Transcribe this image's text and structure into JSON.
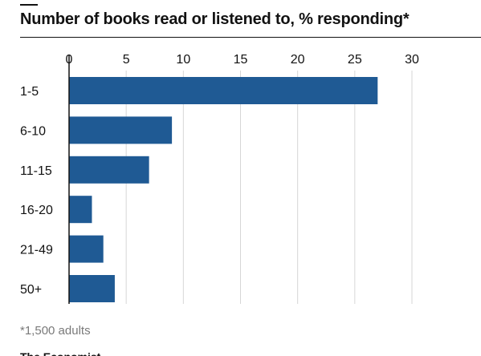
{
  "title": "Number of books read or listened to, % responding*",
  "footnote": "*1,500 adults",
  "colors": {
    "bar": "#1f5a94",
    "grid": "#d6d6d6",
    "axis": "#121212",
    "text": "#121212",
    "muted": "#7a7a7a"
  },
  "chart_data": {
    "type": "bar",
    "orientation": "horizontal",
    "title": "Number of books read or listened to, % responding*",
    "xlabel": "",
    "ylabel": "",
    "categories": [
      "1-5",
      "6-10",
      "11-15",
      "16-20",
      "21-49",
      "50+"
    ],
    "values": [
      27,
      9,
      7,
      2,
      3,
      4
    ],
    "xlim": [
      0,
      30
    ],
    "ticks": [
      0,
      5,
      10,
      15,
      20,
      25,
      30
    ],
    "grid": true,
    "legend": "none"
  }
}
